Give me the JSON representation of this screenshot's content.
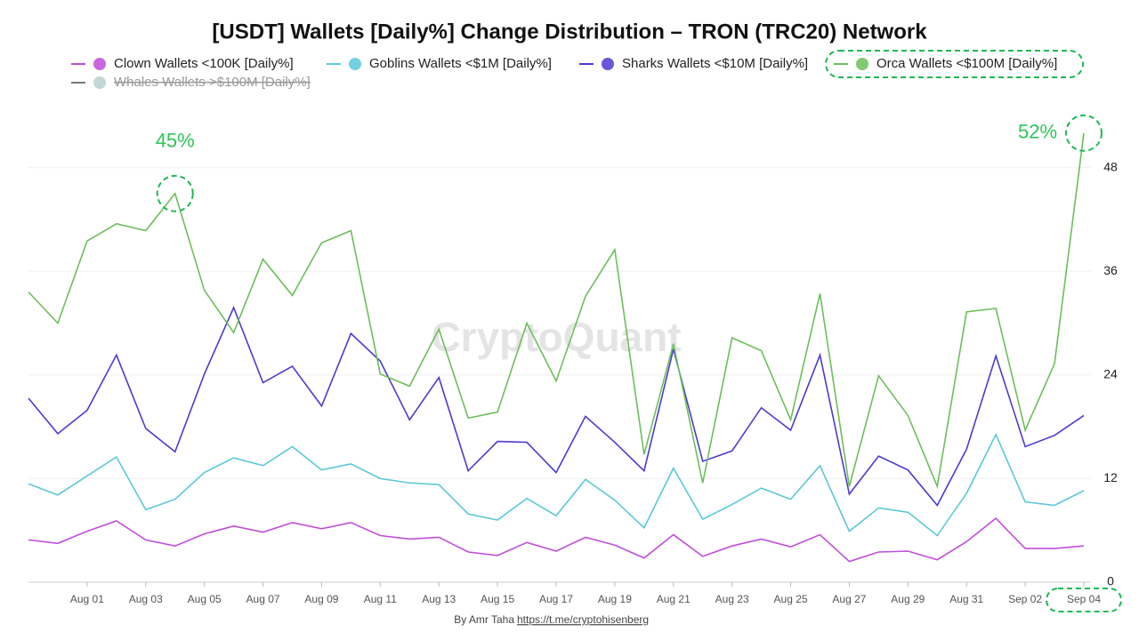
{
  "chart_data": {
    "type": "line",
    "title": "[USDT] Wallets [Daily%] Change Distribution – TRON (TRC20) Network",
    "watermark": "CryptoQuant",
    "credit": "By Amr Taha",
    "credit_link": "https://t.me/cryptohisenberg",
    "categories": [
      null,
      null,
      "Aug 01",
      null,
      "Aug 03",
      null,
      "Aug 05",
      null,
      "Aug 07",
      null,
      "Aug 09",
      null,
      "Aug 11",
      null,
      "Aug 13",
      null,
      "Aug 15",
      null,
      "Aug 17",
      null,
      "Aug 19",
      null,
      "Aug 21",
      null,
      "Aug 23",
      null,
      "Aug 25",
      null,
      "Aug 27",
      null,
      "Aug 29",
      null,
      "Aug 31",
      null,
      "Sep 02",
      null,
      "Sep 04"
    ],
    "ylim": [
      0,
      53
    ],
    "yticks": [
      0,
      12,
      24,
      36,
      48
    ],
    "grid": true,
    "legend": "top",
    "series": [
      {
        "name": "Clown Wallets <100K [Daily%]",
        "color": "#c04ed8",
        "hidden": false,
        "values": [
          4.9,
          4.5,
          5.9,
          7.1,
          4.9,
          4.2,
          5.6,
          6.5,
          5.8,
          6.9,
          6.2,
          6.9,
          5.4,
          5.0,
          5.2,
          3.5,
          3.1,
          4.6,
          3.6,
          5.2,
          4.3,
          2.8,
          5.5,
          3.0,
          4.2,
          5.0,
          4.1,
          5.5,
          2.4,
          3.5,
          3.6,
          2.6,
          4.7,
          7.4,
          3.9,
          3.9,
          4.2
        ]
      },
      {
        "name": "Goblins Wallets <$1M [Daily%]",
        "color": "#5bc8d8",
        "hidden": false,
        "values": [
          11.4,
          10.1,
          12.3,
          14.5,
          8.4,
          9.6,
          12.7,
          14.4,
          13.5,
          15.7,
          13.0,
          13.7,
          12.0,
          11.5,
          11.3,
          7.9,
          7.2,
          9.7,
          7.7,
          11.9,
          9.5,
          6.3,
          13.2,
          7.3,
          9.0,
          10.9,
          9.6,
          13.5,
          5.9,
          8.6,
          8.1,
          5.4,
          10.3,
          17.1,
          9.3,
          8.9,
          10.6
        ]
      },
      {
        "name": "Sharks Wallets <$10M [Daily%]",
        "color": "#4b3bd0",
        "hidden": false,
        "values": [
          21.3,
          17.2,
          19.9,
          26.3,
          17.8,
          15.1,
          24.1,
          31.8,
          23.1,
          25.0,
          20.4,
          28.8,
          25.6,
          18.8,
          23.7,
          12.9,
          16.3,
          16.2,
          12.7,
          19.2,
          16.2,
          12.9,
          27.0,
          14.0,
          15.2,
          20.2,
          17.6,
          26.3,
          10.2,
          14.6,
          13.0,
          8.9,
          15.4,
          26.2,
          15.7,
          17.0,
          19.3
        ]
      },
      {
        "name": "Orca Wallets <$100M [Daily%]",
        "color": "#6cbf5a",
        "hidden": false,
        "values": [
          33.6,
          30.0,
          39.5,
          41.5,
          40.7,
          45,
          33.8,
          28.9,
          37.4,
          33.2,
          39.3,
          40.7,
          24.1,
          22.7,
          29.3,
          19.0,
          19.7,
          30.0,
          23.3,
          33.1,
          38.5,
          14.8,
          27.6,
          11.5,
          28.3,
          26.8,
          18.8,
          33.4,
          11.1,
          23.9,
          19.3,
          11.1,
          31.3,
          31.7,
          17.6,
          25.3,
          52
        ],
        "value_labels": [
          null,
          null,
          null,
          null,
          null,
          "45%",
          null,
          null,
          null,
          null,
          null,
          null,
          null,
          null,
          null,
          null,
          null,
          null,
          null,
          null,
          null,
          null,
          null,
          null,
          null,
          null,
          null,
          null,
          null,
          null,
          null,
          null,
          null,
          null,
          null,
          null,
          "52%"
        ]
      },
      {
        "name": "Whales Wallets >$100M [Daily%]",
        "color": "#777777",
        "hidden": true,
        "values": [
          null,
          null,
          null,
          null,
          null,
          null,
          null,
          null,
          null,
          null,
          null,
          null,
          null,
          null,
          null,
          null,
          null,
          null,
          null,
          null,
          null,
          null,
          null,
          null,
          null,
          null,
          null,
          null,
          null,
          null,
          null,
          null,
          null,
          null,
          null,
          null,
          null
        ]
      }
    ]
  }
}
